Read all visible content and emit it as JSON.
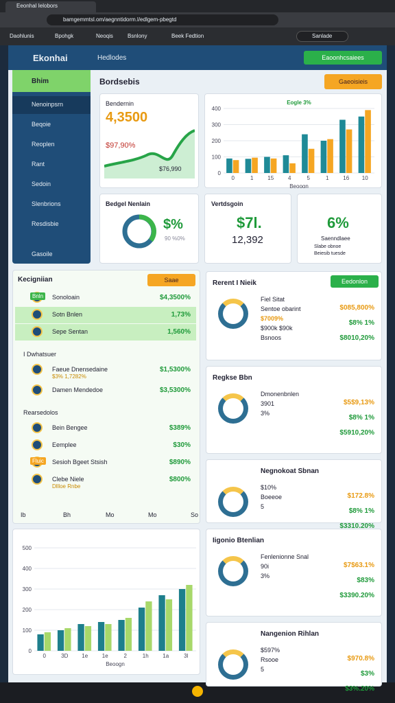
{
  "browser": {
    "tab": "Eeonhal Ielobors",
    "url": "bamgemmtsl.om/aegnntidorm.l/edlgem-pbegtd",
    "bookmarks": [
      "Daohlunis",
      "Bpohgk",
      "Neoqis",
      "Bsnlony",
      "Beek Fedtion"
    ],
    "search": "Sanlade"
  },
  "header": {
    "logo": "Ekonhai",
    "menu": "Hedlodes",
    "button": "Eaoonhcsaiees"
  },
  "sidebar": {
    "top": "Bhim",
    "items": [
      "Nenoinpsrn",
      "Beqoie",
      "Reoplen",
      "Rant",
      "Sedoin",
      "Slenbrions",
      "Resdisbie",
      "Gasoile"
    ]
  },
  "page": {
    "title": "Bordsebis",
    "button": "Gaeoisieis"
  },
  "summary": {
    "title": "Bendernin",
    "value": "4,3500",
    "change": "$97,90%",
    "note": "$76,990"
  },
  "growth_chart": {
    "type": "bar",
    "title": "Eogle 3%",
    "x_label": "Beoogn",
    "categories": [
      "0",
      "1",
      "15",
      "4",
      "5",
      "1",
      "16",
      "10"
    ],
    "series": [
      {
        "color": "#1f8a97",
        "values": [
          90,
          88,
          100,
          110,
          240,
          200,
          330,
          350
        ]
      },
      {
        "color": "#f5a623",
        "values": [
          80,
          95,
          90,
          60,
          150,
          210,
          270,
          390
        ]
      }
    ],
    "ylim": [
      0,
      400
    ],
    "yticks": [
      0,
      100,
      200,
      300,
      400
    ]
  },
  "budget": {
    "title": "Bedgel Nenlain",
    "value": "$%",
    "note": "90 %0%"
  },
  "vertical": {
    "title": "Vertdsgoin",
    "value": "$7l.",
    "count": "12,392"
  },
  "share": {
    "value": "6%",
    "label": "Saenndlaee",
    "legend": [
      "Slabe obnoe",
      "Beiesib tuesde"
    ]
  },
  "list": {
    "title": "Kecigniian",
    "button": "Saae",
    "sections": [
      {
        "title": "",
        "rows": [
          {
            "badge": "Bnln",
            "name": "Sonoloain",
            "value": "$4,3500%"
          },
          {
            "name": "Sotn Bnlen",
            "value": "1,73%"
          },
          {
            "name": "Sepe Sentan",
            "value": "1,560%"
          }
        ]
      },
      {
        "title": "I Dwhatsuer",
        "rows": [
          {
            "name": "Faeue Dnensedaine",
            "sub": "$3% 1,7282%",
            "value": "$1,5300%"
          },
          {
            "name": "Damen Mendedoe",
            "value": "$3,5300%"
          }
        ]
      },
      {
        "title": "Rearsedolos",
        "rows": [
          {
            "name": "Bein Bengee",
            "value": "$389%"
          },
          {
            "name": "Eemplee",
            "value": "$30%"
          },
          {
            "badge": "Fluic",
            "name": "Sesioh Bgeet Stsish",
            "value": "$890%"
          },
          {
            "name": "Clebe Niele",
            "sub": "Dllloe Rnbe",
            "value": "$800%"
          }
        ]
      }
    ],
    "footer": [
      "Ib",
      "Bh",
      "Mo",
      "Mo",
      "So"
    ]
  },
  "trend_chart": {
    "type": "bar",
    "x_label": "Beoogn",
    "categories": [
      "0",
      "3D",
      "1e",
      "1e",
      "2",
      "1h",
      "1a",
      "3l"
    ],
    "series": [
      {
        "color": "#1e7f8c",
        "values": [
          80,
          100,
          130,
          140,
          150,
          210,
          270,
          300
        ]
      },
      {
        "color": "#a8d86a",
        "values": [
          90,
          110,
          120,
          130,
          160,
          240,
          250,
          320
        ]
      }
    ],
    "ylim": [
      0,
      500
    ],
    "yticks": [
      0,
      100,
      200,
      300,
      400,
      500
    ]
  },
  "cards": [
    {
      "title": "Rerent I Nieik",
      "button": "Eedonlon",
      "lines": [
        "Fiel Sitat",
        "Sentoe obarint",
        "$7009%",
        "$900k $90k",
        "Bsnoos"
      ],
      "values": [
        "$085,800%",
        "$8% 1%",
        "$8010,20%"
      ]
    },
    {
      "title": "Regkse Bbn",
      "lines": [
        "Dmonenbnlen",
        "3901",
        "3%"
      ],
      "values": [
        "$5$9,13%",
        "$8% 1%",
        "$5910,20%"
      ]
    },
    {
      "title": "Negnokoat Sbnan",
      "lines": [
        "$10%",
        "Boeeoe",
        "5"
      ],
      "values": [
        "$172.8%",
        "$8% 1%",
        "$3310.20%"
      ]
    },
    {
      "title": "Iigonio Btenlian",
      "lines": [
        "Fenlenionne Snal",
        "90i",
        "3%"
      ],
      "values": [
        "$7$63.1%",
        "$83%",
        "$3390.20%"
      ]
    },
    {
      "title": "Nangenion Rihlan",
      "lines": [
        "$597%",
        "Rsooe",
        "5"
      ],
      "values": [
        "$970.8%",
        "$3%",
        "$3%.20%"
      ]
    }
  ]
}
